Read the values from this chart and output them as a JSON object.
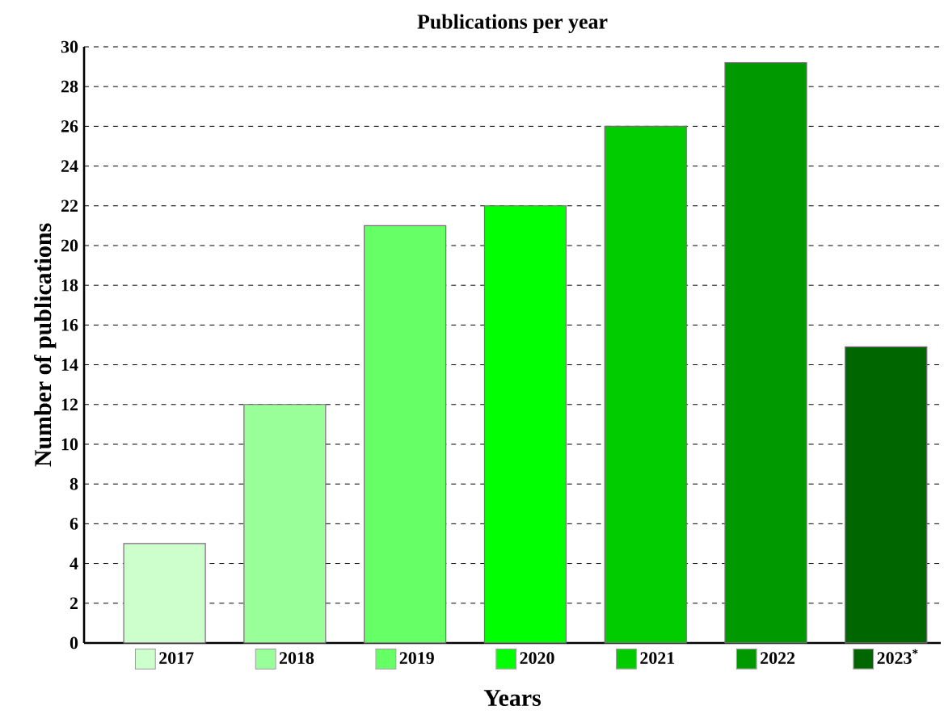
{
  "chart_data": {
    "type": "bar",
    "title": "Publications per year",
    "xlabel": "Years",
    "ylabel": "Number of publications",
    "categories": [
      "2017",
      "2018",
      "2019",
      "2020",
      "2021",
      "2022",
      "2023$^{*}$"
    ],
    "values": [
      5,
      12,
      21,
      22,
      26,
      29.2,
      14.9
    ],
    "colors": [
      "#ccffcc",
      "#99ff99",
      "#66ff66",
      "#00ff00",
      "#00cc00",
      "#009900",
      "#006600"
    ],
    "ylim": [
      0,
      30
    ],
    "yticks": [
      0,
      2,
      4,
      6,
      8,
      10,
      12,
      14,
      16,
      18,
      20,
      22,
      24,
      26,
      28,
      30
    ],
    "grid": "y"
  }
}
